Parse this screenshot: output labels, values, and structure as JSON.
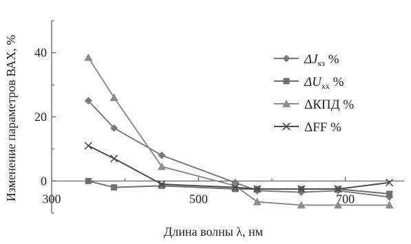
{
  "chart_data": {
    "type": "line",
    "title": "",
    "xlabel": "Длина волны λ, нм",
    "ylabel": "Изменение параметров ВАХ, %",
    "xlim": [
      300,
      780
    ],
    "ylim": [
      -10,
      50
    ],
    "x_ticks": [
      300,
      500,
      700
    ],
    "y_ticks": [
      0,
      20,
      40
    ],
    "grid": false,
    "legend_position": "right",
    "series": [
      {
        "name": "ΔJкз %",
        "name_main": "ΔJ",
        "name_sub": "кз",
        "name_suffix": " %",
        "marker": "diamond",
        "color": "#7a7a7a",
        "x": [
          350,
          385,
          450,
          550,
          580,
          640,
          690,
          760
        ],
        "y": [
          25,
          16.5,
          8,
          -0.5,
          -3,
          -3.5,
          -3,
          -5
        ]
      },
      {
        "name": "ΔUхх %",
        "name_main": "ΔU",
        "name_sub": "хх",
        "name_suffix": " %",
        "marker": "square",
        "color": "#6e6e6e",
        "x": [
          350,
          385,
          450,
          550,
          580,
          640,
          690,
          760
        ],
        "y": [
          0,
          -2,
          -1.5,
          -2.5,
          -2.5,
          -2.5,
          -2.5,
          -4
        ]
      },
      {
        "name": "ΔКПД %",
        "marker": "triangle",
        "color": "#8c8c8c",
        "x": [
          350,
          385,
          450,
          550,
          580,
          640,
          690,
          760
        ],
        "y": [
          38.5,
          26,
          4.5,
          -1.5,
          -6.5,
          -7.5,
          -7.5,
          -7.5
        ]
      },
      {
        "name": "ΔFF %",
        "marker": "x",
        "color": "#4a4a4a",
        "x": [
          350,
          385,
          450,
          550,
          580,
          640,
          690,
          760
        ],
        "y": [
          11,
          7,
          -1,
          -2,
          -2.5,
          -2.5,
          -2.5,
          -0.5
        ]
      }
    ]
  }
}
